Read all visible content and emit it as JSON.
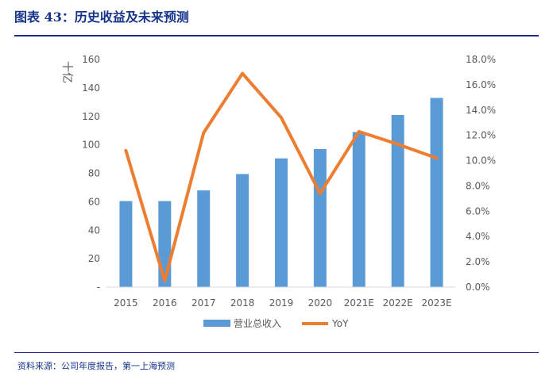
{
  "figure": {
    "title": "图表 43：历史收益及未来预测",
    "source": "资料来源：公司年度报告，第一上海预测"
  },
  "chart_data": {
    "type": "bar",
    "categories": [
      "2015",
      "2016",
      "2017",
      "2018",
      "2019",
      "2020",
      "2021E",
      "2022E",
      "2023E"
    ],
    "series": [
      {
        "name": "营业总收入",
        "type": "bar",
        "axis": "left",
        "color": "#5b9bd5",
        "values": [
          60.5,
          60.5,
          68,
          79.5,
          90.5,
          97,
          109,
          121,
          133
        ]
      },
      {
        "name": "YoY",
        "type": "line",
        "axis": "right",
        "color": "#ed7d31",
        "values": [
          10.8,
          0.5,
          12.2,
          16.9,
          13.4,
          7.4,
          12.3,
          11.3,
          10.2
        ]
      }
    ],
    "ylabel": "十亿",
    "ylim": [
      0,
      160
    ],
    "yticks": [
      "-",
      "20",
      "40",
      "60",
      "80",
      "100",
      "120",
      "140",
      "160"
    ],
    "y2lim": [
      0,
      18
    ],
    "y2ticks": [
      "0.0%",
      "2.0%",
      "4.0%",
      "6.0%",
      "8.0%",
      "10.0%",
      "12.0%",
      "14.0%",
      "16.0%",
      "18.0%"
    ],
    "legend": [
      "营业总收入",
      "YoY"
    ],
    "legend_position": "bottom",
    "grid": false
  }
}
